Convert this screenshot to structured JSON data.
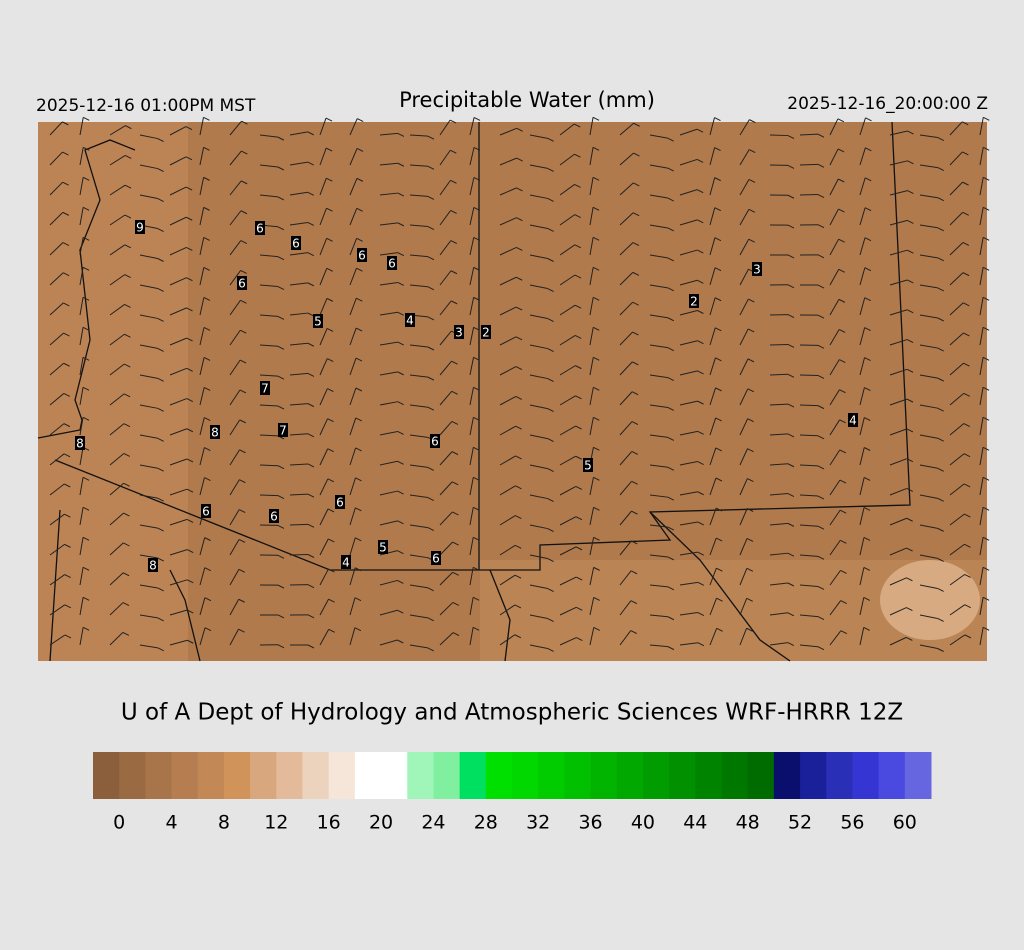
{
  "header": {
    "left": "2025-12-16 01:00PM MST",
    "title": "Precipitable Water (mm)",
    "right": "2025-12-16_20:00:00 Z"
  },
  "stations": [
    9,
    6,
    6,
    6,
    6,
    6,
    5,
    4,
    3,
    2,
    2,
    3,
    7,
    8,
    7,
    8,
    6,
    4,
    5,
    6,
    6,
    6,
    5,
    6,
    4,
    8
  ],
  "credit": "U of A Dept of Hydrology and Atmospheric Sciences WRF-HRRR 12Z",
  "colorbar": {
    "colors": [
      "#8b5e3c",
      "#9a6a42",
      "#a8744a",
      "#b57d50",
      "#c28856",
      "#d09359",
      "#d9a77e",
      "#e3bb9a",
      "#ecd3bd",
      "#f5e6d9",
      "#ffffff",
      "#ffffff",
      "#a0f5b8",
      "#80f0a0",
      "#00e060",
      "#00e000",
      "#00d800",
      "#00cc00",
      "#00c000",
      "#00b400",
      "#00a800",
      "#009c00",
      "#009000",
      "#008400",
      "#007800",
      "#006c00",
      "#0a0f6e",
      "#1a1f9a",
      "#2a2fb8",
      "#3535d4",
      "#4a4ae0",
      "#6666e0"
    ],
    "labels": [
      0,
      4,
      8,
      12,
      16,
      20,
      24,
      28,
      32,
      36,
      40,
      44,
      48,
      52,
      56,
      60
    ]
  }
}
